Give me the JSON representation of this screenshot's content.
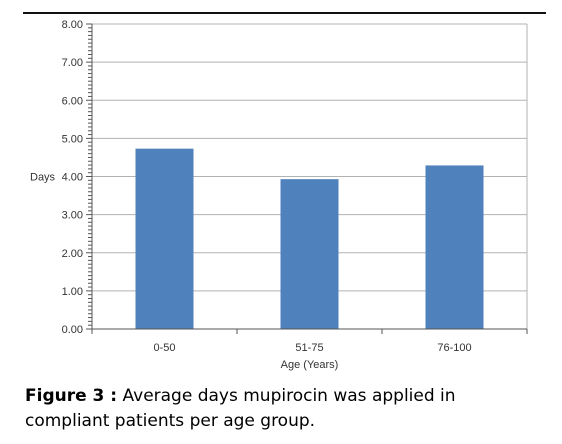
{
  "chart_data": {
    "type": "bar",
    "categories": [
      "0-50",
      "51-75",
      "76-100"
    ],
    "values": [
      4.73,
      3.93,
      4.29
    ],
    "xlabel": "Age (Years)",
    "ylabel": "Days",
    "ylim": [
      0,
      8
    ],
    "y_ticks": [
      "0.00",
      "1.00",
      "2.00",
      "3.00",
      "4.00",
      "5.00",
      "6.00",
      "7.00",
      "8.00"
    ],
    "grid": true,
    "legend": "none",
    "bar_color": "#4f81bd",
    "grid_color": "#b3b3b3"
  },
  "caption": {
    "label": "Figure 3 :",
    "text": "Average days mupirocin was applied in compliant patients per age group."
  }
}
